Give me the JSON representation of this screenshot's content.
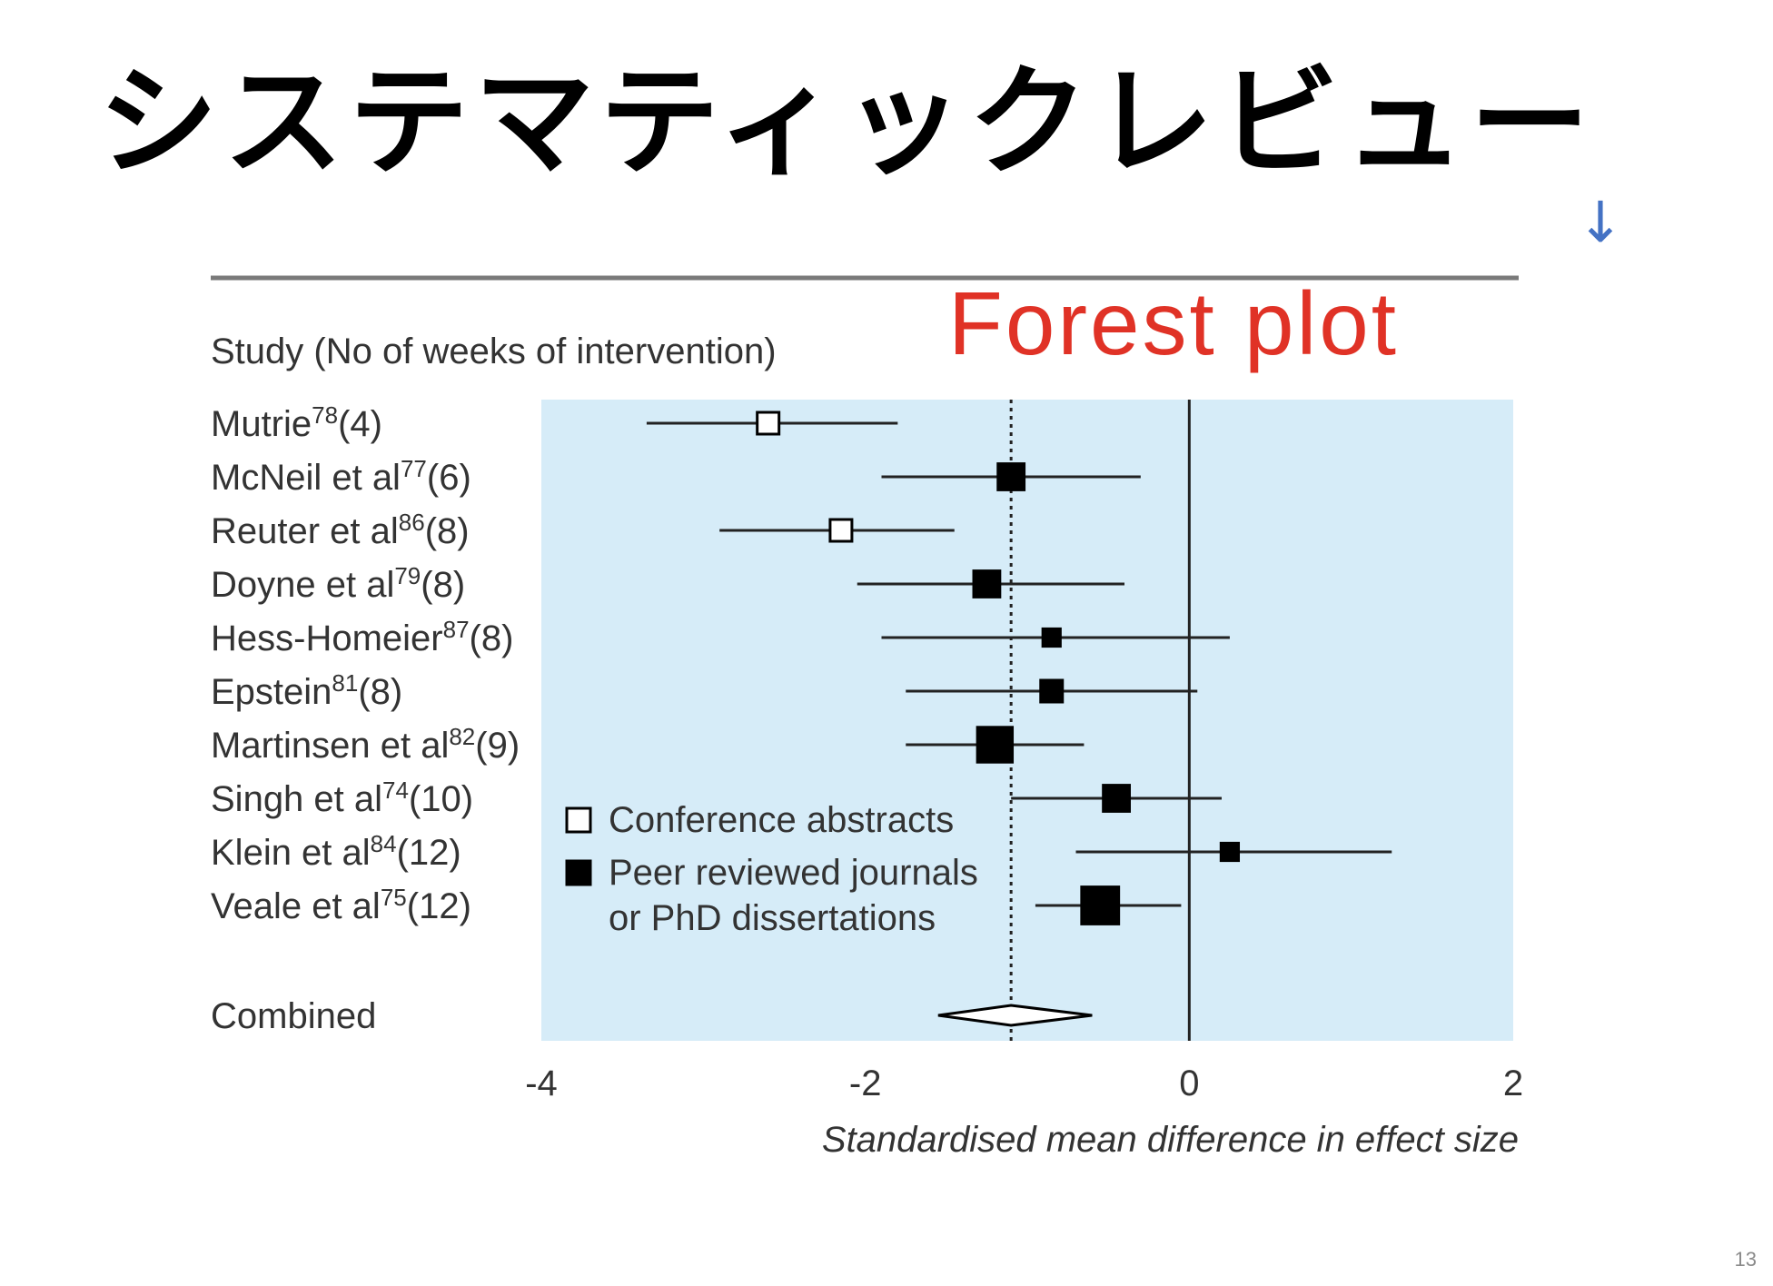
{
  "slide": {
    "title": "システマティックレビュー",
    "annotation_label": "Forest plot",
    "arrow_glyph": "↓",
    "page_number": "13"
  },
  "colors": {
    "panel": "#d6ecf8",
    "title": "#000000",
    "annotation": "#e03226",
    "arrow": "#4472c4"
  },
  "chart_data": {
    "type": "forest",
    "study_header": "Study (No of weeks of intervention)",
    "xlabel": "Standardised mean difference in effect size",
    "xlim": [
      -4,
      2
    ],
    "ticks": [
      -4,
      -2,
      0,
      2
    ],
    "reference_line": 0,
    "combined_line": -1.1,
    "studies": [
      {
        "name": "Mutrie",
        "ref": "78",
        "weeks": "(4)",
        "estimate": -2.6,
        "lower": -3.35,
        "upper": -1.8,
        "source": "conference",
        "weight": 1
      },
      {
        "name": "McNeil et al",
        "ref": "77",
        "weeks": "(6)",
        "estimate": -1.1,
        "lower": -1.9,
        "upper": -0.3,
        "source": "peer",
        "weight": 1.2
      },
      {
        "name": "Reuter et al",
        "ref": "86",
        "weeks": "(8)",
        "estimate": -2.15,
        "lower": -2.9,
        "upper": -1.45,
        "source": "conference",
        "weight": 1
      },
      {
        "name": "Doyne et al",
        "ref": "79",
        "weeks": "(8)",
        "estimate": -1.25,
        "lower": -2.05,
        "upper": -0.4,
        "source": "peer",
        "weight": 1.2
      },
      {
        "name": "Hess-Homeier",
        "ref": "87",
        "weeks": "(8)",
        "estimate": -0.85,
        "lower": -1.9,
        "upper": 0.25,
        "source": "peer",
        "weight": 0.8
      },
      {
        "name": "Epstein",
        "ref": "81",
        "weeks": "(8)",
        "estimate": -0.85,
        "lower": -1.75,
        "upper": 0.05,
        "source": "peer",
        "weight": 1
      },
      {
        "name": "Martinsen et al",
        "ref": "82",
        "weeks": "(9)",
        "estimate": -1.2,
        "lower": -1.75,
        "upper": -0.65,
        "source": "peer",
        "weight": 1.6
      },
      {
        "name": "Singh et al",
        "ref": "74",
        "weeks": "(10)",
        "estimate": -0.45,
        "lower": -1.1,
        "upper": 0.2,
        "source": "peer",
        "weight": 1.2
      },
      {
        "name": "Klein et al",
        "ref": "84",
        "weeks": "(12)",
        "estimate": 0.25,
        "lower": -0.7,
        "upper": 1.25,
        "source": "peer",
        "weight": 0.8
      },
      {
        "name": "Veale et al",
        "ref": "75",
        "weeks": "(12)",
        "estimate": -0.55,
        "lower": -0.95,
        "upper": -0.05,
        "source": "peer",
        "weight": 1.7
      }
    ],
    "combined": {
      "name": "Combined",
      "estimate": -1.1,
      "lower": -1.55,
      "upper": -0.6
    },
    "legend": [
      {
        "label_lines": [
          "Conference abstracts"
        ],
        "marker": "open-square"
      },
      {
        "label_lines": [
          "Peer reviewed journals",
          "or PhD dissertations"
        ],
        "marker": "filled-square"
      }
    ]
  }
}
